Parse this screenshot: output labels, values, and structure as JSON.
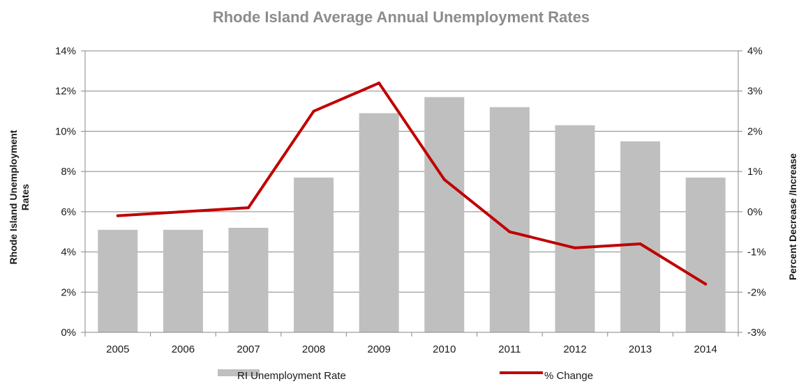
{
  "chart_data": {
    "type": "bar",
    "title": "Rhode Island Average Annual Unemployment Rates",
    "categories": [
      "2005",
      "2006",
      "2007",
      "2008",
      "2009",
      "2010",
      "2011",
      "2012",
      "2013",
      "2014"
    ],
    "series": [
      {
        "name": "RI Unemployment Rate",
        "type": "bar",
        "axis": "left",
        "values": [
          5.1,
          5.1,
          5.2,
          7.7,
          10.9,
          11.7,
          11.2,
          10.3,
          9.5,
          7.7
        ],
        "color": "#bfbfbf"
      },
      {
        "name": "% Change",
        "type": "line",
        "axis": "right",
        "values": [
          -0.1,
          0.0,
          0.1,
          2.5,
          3.2,
          0.8,
          -0.5,
          -0.9,
          -0.8,
          -1.8
        ],
        "color": "#c00000"
      }
    ],
    "ylabel_left_lines": [
      "Rhode Island Unemployment",
      "Rates"
    ],
    "ylabel_right": "Percent Decrease /Increase",
    "ylim_left": [
      0,
      14
    ],
    "yticks_left": [
      "0%",
      "2%",
      "4%",
      "6%",
      "8%",
      "10%",
      "12%",
      "14%"
    ],
    "ylim_right": [
      -3,
      4
    ],
    "yticks_right": [
      "-3%",
      "-2%",
      "-1%",
      "0%",
      "1%",
      "2%",
      "3%",
      "4%"
    ],
    "grid": true,
    "legend_position": "bottom"
  }
}
